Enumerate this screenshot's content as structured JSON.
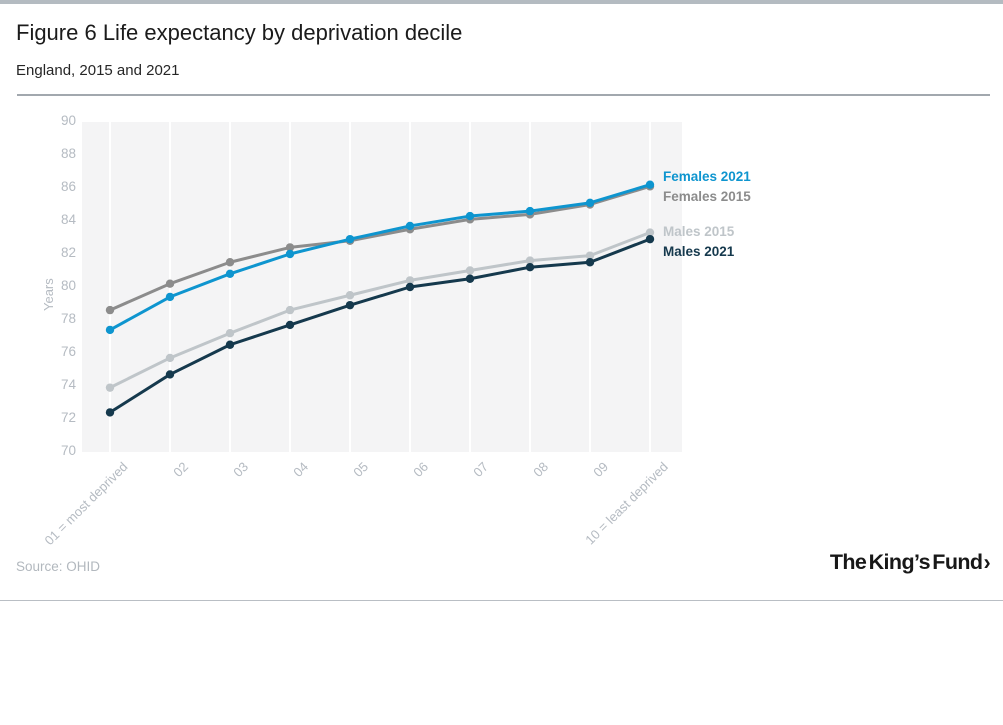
{
  "page": {
    "title": "Figure 6 Life expectancy by deprivation decile",
    "subtitle": "England, 2015 and 2021",
    "source": "Source: OHID",
    "logo_text": "The King’s Fund",
    "logo_chevron": "›"
  },
  "colors": {
    "accent_blue": "#0e95cf",
    "mid_gray": "#8c8c8c",
    "light_gray": "#bfc5c9",
    "dark_navy": "#15394d",
    "axis_text": "#b5bbc2",
    "plot_background": "#f4f4f5",
    "grid_line": "#ffffff",
    "top_bar": "#b4bbc1"
  },
  "chart_data": {
    "type": "line",
    "title": "Figure 6 Life expectancy by deprivation decile",
    "subtitle": "England, 2015 and 2021",
    "ylabel": "Years",
    "xlabel": "",
    "ylim": [
      70,
      90
    ],
    "ytick_step": 2,
    "grid": "vertical-only",
    "legend_position": "right",
    "categories": [
      "01 = most deprived",
      "02",
      "03",
      "04",
      "05",
      "06",
      "07",
      "08",
      "09",
      "10 = least deprived"
    ],
    "series": [
      {
        "name": "Females 2021",
        "color": "#0e95cf",
        "values": [
          77.4,
          79.4,
          80.8,
          82.0,
          82.9,
          83.7,
          84.3,
          84.6,
          85.1,
          86.2
        ]
      },
      {
        "name": "Females 2015",
        "color": "#8c8c8c",
        "values": [
          78.6,
          80.2,
          81.5,
          82.4,
          82.8,
          83.5,
          84.1,
          84.4,
          85.0,
          86.1
        ]
      },
      {
        "name": "Males 2015",
        "color": "#bfc5c9",
        "values": [
          73.9,
          75.7,
          77.2,
          78.6,
          79.5,
          80.4,
          81.0,
          81.6,
          81.9,
          83.3
        ]
      },
      {
        "name": "Males 2021",
        "color": "#15394d",
        "values": [
          72.4,
          74.7,
          76.5,
          77.7,
          78.9,
          80.0,
          80.5,
          81.2,
          81.5,
          82.9
        ]
      }
    ],
    "legend_groups": [
      [
        "Females 2021",
        "Females 2015"
      ],
      [
        "Males 2015",
        "Males 2021"
      ]
    ],
    "draw_order": [
      "Males 2015",
      "Males 2021",
      "Females 2015",
      "Females 2021"
    ]
  }
}
